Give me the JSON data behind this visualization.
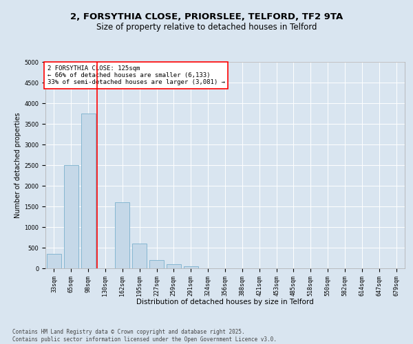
{
  "title_line1": "2, FORSYTHIA CLOSE, PRIORSLEE, TELFORD, TF2 9TA",
  "title_line2": "Size of property relative to detached houses in Telford",
  "categories": [
    "33sqm",
    "65sqm",
    "98sqm",
    "130sqm",
    "162sqm",
    "195sqm",
    "227sqm",
    "259sqm",
    "291sqm",
    "324sqm",
    "356sqm",
    "388sqm",
    "421sqm",
    "453sqm",
    "485sqm",
    "518sqm",
    "550sqm",
    "582sqm",
    "614sqm",
    "647sqm",
    "679sqm"
  ],
  "values": [
    350,
    2500,
    3750,
    0,
    1600,
    600,
    200,
    100,
    50,
    0,
    0,
    0,
    0,
    0,
    0,
    0,
    0,
    0,
    0,
    0,
    0
  ],
  "bar_color": "#c5d8e8",
  "bar_edge_color": "#7ab0cc",
  "vline_index": 3,
  "vline_color": "red",
  "xlabel": "Distribution of detached houses by size in Telford",
  "ylabel": "Number of detached properties",
  "ylim": [
    0,
    5000
  ],
  "yticks": [
    0,
    500,
    1000,
    1500,
    2000,
    2500,
    3000,
    3500,
    4000,
    4500,
    5000
  ],
  "bg_color": "#d9e5f0",
  "plot_bg_color": "#d9e5f0",
  "annotation_line1": "2 FORSYTHIA CLOSE: 125sqm",
  "annotation_line2": "← 66% of detached houses are smaller (6,133)",
  "annotation_line3": "33% of semi-detached houses are larger (3,081) →",
  "annotation_box_facecolor": "white",
  "annotation_box_edgecolor": "red",
  "footer_text": "Contains HM Land Registry data © Crown copyright and database right 2025.\nContains public sector information licensed under the Open Government Licence v3.0.",
  "grid_color": "white",
  "title_fontsize": 9.5,
  "subtitle_fontsize": 8.5,
  "xlabel_fontsize": 7.5,
  "ylabel_fontsize": 7,
  "tick_fontsize": 6,
  "annotation_fontsize": 6.5,
  "footer_fontsize": 5.5
}
